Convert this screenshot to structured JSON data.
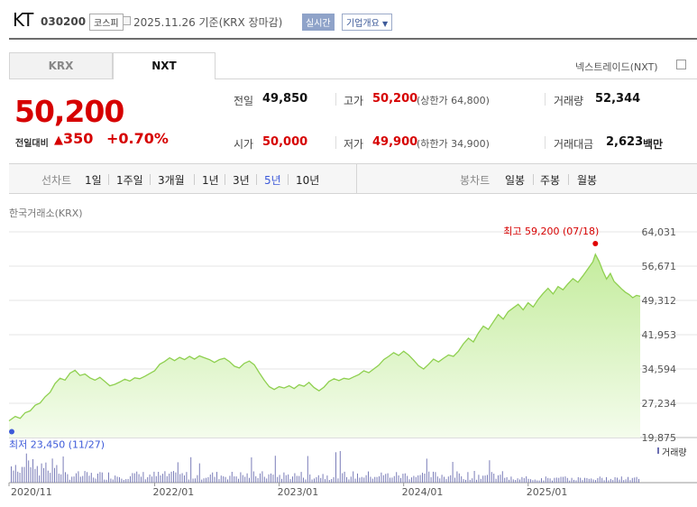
{
  "header": {
    "name": "KT",
    "code": "030200",
    "market": "코스피",
    "date": "2025.11.26 기준(KRX 장마감)",
    "realtime": "실시간",
    "corp_info": "기업개요"
  },
  "tabs": [
    {
      "label": "KRX",
      "active": false
    },
    {
      "label": "NXT",
      "active": true
    }
  ],
  "nxt_link": "넥스트레이드(NXT)",
  "price": {
    "current": "50,200",
    "change_label": "전일대비",
    "change": "350",
    "change_pct": "+0.70%"
  },
  "quote": {
    "prev_label": "전일",
    "prev": "49,850",
    "open_label": "시가",
    "open": "50,000",
    "high_label": "고가",
    "high": "50,200",
    "upper_limit": "(상한가 64,800)",
    "low_label": "저가",
    "low": "49,900",
    "lower_limit": "(하한가 34,900)",
    "volume_label": "거래량",
    "volume": "52,344",
    "amount_label": "거래대금",
    "amount": "2,623",
    "amount_unit": "백만"
  },
  "periods": {
    "line_label": "선차트",
    "line": [
      "1일",
      "1주일",
      "3개월",
      "1년",
      "3년",
      "5년",
      "10년"
    ],
    "active": "5년",
    "candle_label": "봉차트",
    "candle": [
      "일봉",
      "주봉",
      "월봉"
    ]
  },
  "chart_data": {
    "type": "area",
    "source_label": "한국거래소(KRX)",
    "y_ticks": [
      "64,031",
      "56,671",
      "49,312",
      "41,953",
      "34,594",
      "27,234",
      "19,875"
    ],
    "ylim": [
      19875,
      64031
    ],
    "x_ticks": [
      {
        "label": "2020/11",
        "t": 2020.83
      },
      {
        "label": "2022/01",
        "t": 2022.0
      },
      {
        "label": "2023/01",
        "t": 2023.0
      },
      {
        "label": "2024/01",
        "t": 2024.0
      },
      {
        "label": "2025/01",
        "t": 2025.0
      }
    ],
    "xlim": [
      2020.83,
      2025.9
    ],
    "max_annotation": "최고 59,200 (07/18)",
    "min_annotation": "최저 23,450 (11/27)",
    "max_point": {
      "t": 2025.54,
      "v": 59200
    },
    "min_point": {
      "t": 2020.83,
      "v": 23450
    },
    "volume_legend": "거래량",
    "line_color": "#8fd050",
    "fill_top": "#c4ec9d",
    "fill_bottom": "#f4fcec",
    "series": [
      {
        "t": 2020.83,
        "v": 23450
      },
      {
        "t": 2020.88,
        "v": 24400
      },
      {
        "t": 2020.92,
        "v": 24000
      },
      {
        "t": 2020.96,
        "v": 25200
      },
      {
        "t": 2021.0,
        "v": 25600
      },
      {
        "t": 2021.04,
        "v": 26800
      },
      {
        "t": 2021.08,
        "v": 27300
      },
      {
        "t": 2021.12,
        "v": 28600
      },
      {
        "t": 2021.16,
        "v": 29600
      },
      {
        "t": 2021.2,
        "v": 31500
      },
      {
        "t": 2021.24,
        "v": 32600
      },
      {
        "t": 2021.28,
        "v": 32200
      },
      {
        "t": 2021.32,
        "v": 33700
      },
      {
        "t": 2021.36,
        "v": 34300
      },
      {
        "t": 2021.4,
        "v": 33200
      },
      {
        "t": 2021.44,
        "v": 33500
      },
      {
        "t": 2021.48,
        "v": 32700
      },
      {
        "t": 2021.52,
        "v": 32200
      },
      {
        "t": 2021.56,
        "v": 32800
      },
      {
        "t": 2021.6,
        "v": 31900
      },
      {
        "t": 2021.64,
        "v": 31000
      },
      {
        "t": 2021.68,
        "v": 31300
      },
      {
        "t": 2021.72,
        "v": 31800
      },
      {
        "t": 2021.76,
        "v": 32400
      },
      {
        "t": 2021.8,
        "v": 32000
      },
      {
        "t": 2021.84,
        "v": 32700
      },
      {
        "t": 2021.88,
        "v": 32500
      },
      {
        "t": 2021.92,
        "v": 33000
      },
      {
        "t": 2021.96,
        "v": 33600
      },
      {
        "t": 2022.0,
        "v": 34200
      },
      {
        "t": 2022.04,
        "v": 35600
      },
      {
        "t": 2022.08,
        "v": 36200
      },
      {
        "t": 2022.12,
        "v": 37000
      },
      {
        "t": 2022.16,
        "v": 36400
      },
      {
        "t": 2022.2,
        "v": 37100
      },
      {
        "t": 2022.24,
        "v": 36600
      },
      {
        "t": 2022.28,
        "v": 37300
      },
      {
        "t": 2022.32,
        "v": 36700
      },
      {
        "t": 2022.36,
        "v": 37400
      },
      {
        "t": 2022.4,
        "v": 37000
      },
      {
        "t": 2022.44,
        "v": 36600
      },
      {
        "t": 2022.48,
        "v": 36000
      },
      {
        "t": 2022.52,
        "v": 36600
      },
      {
        "t": 2022.56,
        "v": 36900
      },
      {
        "t": 2022.6,
        "v": 36200
      },
      {
        "t": 2022.64,
        "v": 35200
      },
      {
        "t": 2022.68,
        "v": 34800
      },
      {
        "t": 2022.72,
        "v": 35800
      },
      {
        "t": 2022.76,
        "v": 36300
      },
      {
        "t": 2022.8,
        "v": 35500
      },
      {
        "t": 2022.84,
        "v": 33800
      },
      {
        "t": 2022.88,
        "v": 32200
      },
      {
        "t": 2022.92,
        "v": 30800
      },
      {
        "t": 2022.96,
        "v": 30200
      },
      {
        "t": 2023.0,
        "v": 30800
      },
      {
        "t": 2023.04,
        "v": 30500
      },
      {
        "t": 2023.08,
        "v": 31000
      },
      {
        "t": 2023.12,
        "v": 30400
      },
      {
        "t": 2023.16,
        "v": 31200
      },
      {
        "t": 2023.2,
        "v": 30900
      },
      {
        "t": 2023.24,
        "v": 31700
      },
      {
        "t": 2023.28,
        "v": 30600
      },
      {
        "t": 2023.32,
        "v": 29900
      },
      {
        "t": 2023.36,
        "v": 30700
      },
      {
        "t": 2023.4,
        "v": 31900
      },
      {
        "t": 2023.44,
        "v": 32500
      },
      {
        "t": 2023.48,
        "v": 32100
      },
      {
        "t": 2023.52,
        "v": 32600
      },
      {
        "t": 2023.56,
        "v": 32400
      },
      {
        "t": 2023.6,
        "v": 32900
      },
      {
        "t": 2023.64,
        "v": 33400
      },
      {
        "t": 2023.68,
        "v": 34200
      },
      {
        "t": 2023.72,
        "v": 33800
      },
      {
        "t": 2023.76,
        "v": 34600
      },
      {
        "t": 2023.8,
        "v": 35400
      },
      {
        "t": 2023.84,
        "v": 36600
      },
      {
        "t": 2023.88,
        "v": 37300
      },
      {
        "t": 2023.92,
        "v": 38100
      },
      {
        "t": 2023.96,
        "v": 37500
      },
      {
        "t": 2024.0,
        "v": 38400
      },
      {
        "t": 2024.04,
        "v": 37600
      },
      {
        "t": 2024.08,
        "v": 36500
      },
      {
        "t": 2024.12,
        "v": 35300
      },
      {
        "t": 2024.16,
        "v": 34600
      },
      {
        "t": 2024.2,
        "v": 35600
      },
      {
        "t": 2024.24,
        "v": 36700
      },
      {
        "t": 2024.28,
        "v": 36100
      },
      {
        "t": 2024.32,
        "v": 36900
      },
      {
        "t": 2024.36,
        "v": 37600
      },
      {
        "t": 2024.4,
        "v": 37300
      },
      {
        "t": 2024.44,
        "v": 38400
      },
      {
        "t": 2024.48,
        "v": 40000
      },
      {
        "t": 2024.52,
        "v": 41200
      },
      {
        "t": 2024.56,
        "v": 40400
      },
      {
        "t": 2024.6,
        "v": 42300
      },
      {
        "t": 2024.64,
        "v": 43800
      },
      {
        "t": 2024.68,
        "v": 43100
      },
      {
        "t": 2024.72,
        "v": 44700
      },
      {
        "t": 2024.76,
        "v": 46300
      },
      {
        "t": 2024.8,
        "v": 45300
      },
      {
        "t": 2024.84,
        "v": 46900
      },
      {
        "t": 2024.88,
        "v": 47700
      },
      {
        "t": 2024.92,
        "v": 48500
      },
      {
        "t": 2024.96,
        "v": 47300
      },
      {
        "t": 2025.0,
        "v": 48800
      },
      {
        "t": 2025.04,
        "v": 47900
      },
      {
        "t": 2025.08,
        "v": 49500
      },
      {
        "t": 2025.12,
        "v": 50800
      },
      {
        "t": 2025.16,
        "v": 51900
      },
      {
        "t": 2025.2,
        "v": 50700
      },
      {
        "t": 2025.24,
        "v": 52300
      },
      {
        "t": 2025.28,
        "v": 51600
      },
      {
        "t": 2025.32,
        "v": 52900
      },
      {
        "t": 2025.36,
        "v": 54000
      },
      {
        "t": 2025.4,
        "v": 53200
      },
      {
        "t": 2025.44,
        "v": 54600
      },
      {
        "t": 2025.48,
        "v": 56100
      },
      {
        "t": 2025.52,
        "v": 57600
      },
      {
        "t": 2025.54,
        "v": 59200
      },
      {
        "t": 2025.57,
        "v": 57700
      },
      {
        "t": 2025.6,
        "v": 55600
      },
      {
        "t": 2025.63,
        "v": 53900
      },
      {
        "t": 2025.66,
        "v": 55100
      },
      {
        "t": 2025.69,
        "v": 53400
      },
      {
        "t": 2025.72,
        "v": 52600
      },
      {
        "t": 2025.75,
        "v": 51800
      },
      {
        "t": 2025.78,
        "v": 51100
      },
      {
        "t": 2025.81,
        "v": 50600
      },
      {
        "t": 2025.84,
        "v": 49900
      },
      {
        "t": 2025.87,
        "v": 50400
      },
      {
        "t": 2025.9,
        "v": 50200
      }
    ]
  }
}
